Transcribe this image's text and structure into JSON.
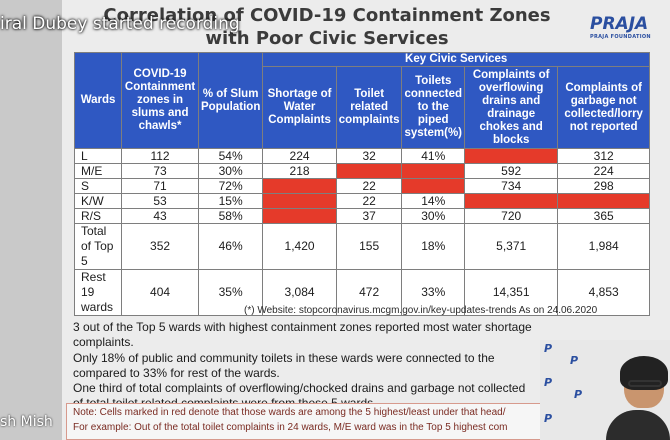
{
  "recording_banner": "iral Dubey started recording",
  "participant_label": "sh Mish",
  "slide": {
    "title_line1": "Correlation of COVID-19 Containment Zones",
    "title_line2": "with Poor Civic Services",
    "logo_text": "PRAJA",
    "logo_sub": "PRAJA FOUNDATION"
  },
  "table": {
    "header_group": "Key Civic Services",
    "headers": {
      "wards": "Wards",
      "covid": "COVID-19 Containment zones in slums and chawls*",
      "slum": "% of Slum Population",
      "water": "Shortage of Water Complaints",
      "toilet": "Toilet related complaints",
      "piped": "Toilets connected to the piped system(%)",
      "drains": "Complaints of overflowing drains and drainage chokes and blocks",
      "garbage": "Complaints of garbage not collected/lorry not reported"
    },
    "rows": [
      {
        "ward": "L",
        "covid": "112",
        "slum": "54%",
        "water": "224",
        "toilet": "32",
        "piped": "41%",
        "drains": "",
        "garbage": "312"
      },
      {
        "ward": "M/E",
        "covid": "73",
        "slum": "30%",
        "water": "218",
        "toilet": "",
        "piped": "",
        "drains": "592",
        "garbage": "224"
      },
      {
        "ward": "S",
        "covid": "71",
        "slum": "72%",
        "water": "",
        "toilet": "22",
        "piped": "",
        "drains": "734",
        "garbage": "298"
      },
      {
        "ward": "K/W",
        "covid": "53",
        "slum": "15%",
        "water": "",
        "toilet": "22",
        "piped": "14%",
        "drains": "",
        "garbage": ""
      },
      {
        "ward": "R/S",
        "covid": "43",
        "slum": "58%",
        "water": "",
        "toilet": "37",
        "piped": "30%",
        "drains": "720",
        "garbage": "365"
      }
    ],
    "total_top5": {
      "ward": "Total of Top 5",
      "covid": "352",
      "slum": "46%",
      "water": "1,420",
      "toilet": "155",
      "piped": "18%",
      "drains": "5,371",
      "garbage": "1,984"
    },
    "rest19": {
      "ward": "Rest 19 wards",
      "covid": "404",
      "slum": "35%",
      "water": "3,084",
      "toilet": "472",
      "piped": "33%",
      "drains": "14,351",
      "garbage": "4,853"
    }
  },
  "source_note": "(*) Website: stopcoronavirus.mcgm.gov.in/key-updates-trends  As on 24.06.2020",
  "bullets": [
    "3 out of the Top 5 wards with highest containment zones reported most water shortage complaints.",
    "Only 18% of public and community toilets in these wards were connected to the",
    "compared to 33% for rest of the wards.",
    "One third of total complaints of overflowing/chocked drains and garbage not collected",
    "of total toilet related complaints were from these 5 wards."
  ],
  "footnote": {
    "line1": "Note: Cells marked in red denote that those wards are among the 5 highest/least under that head/",
    "line2": "For example: Out of the total toilet complaints in 24 wards, M/E ward was in the Top 5 highest com"
  },
  "colors": {
    "header_blue": "#2f58c2",
    "highlight_red": "#e53a2a"
  }
}
